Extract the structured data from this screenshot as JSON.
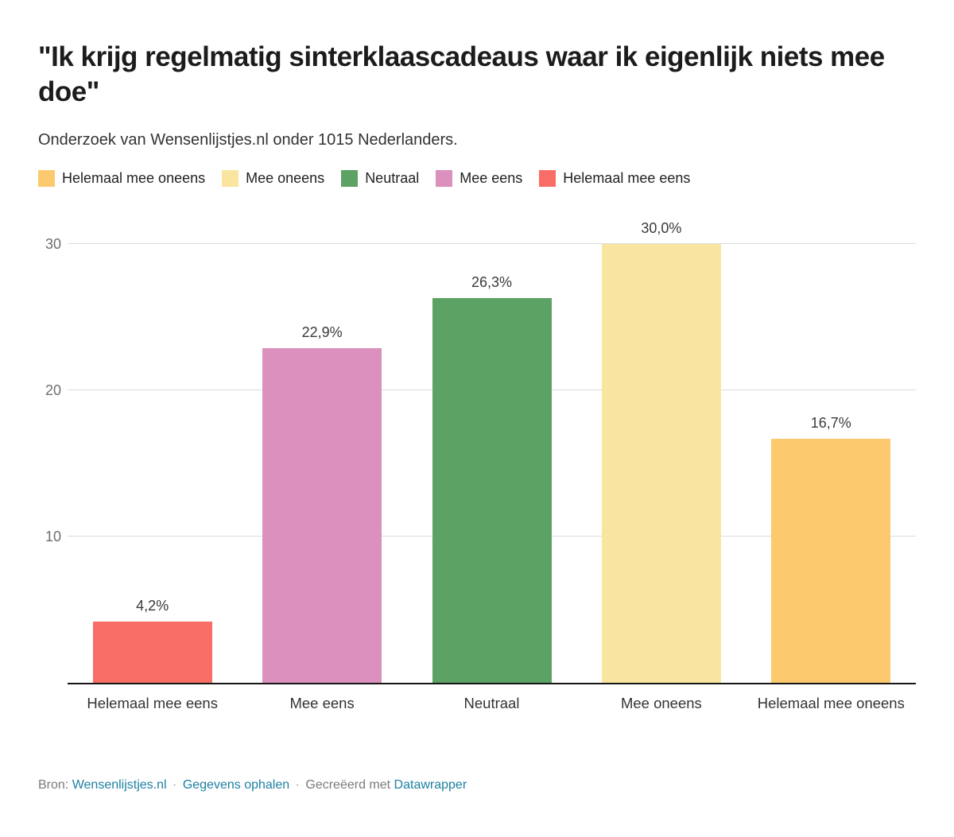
{
  "header": {
    "title": "\"Ik krijg regelmatig sinterklaascadeaus waar ik eigenlijk niets mee doe\"",
    "subtitle": "Onderzoek van Wensenlijstjes.nl onder 1015 Nederlanders."
  },
  "legend": {
    "items": [
      {
        "label": "Helemaal mee oneens",
        "color": "#FDC96E"
      },
      {
        "label": "Mee oneens",
        "color": "#F9E5A0"
      },
      {
        "label": "Neutraal",
        "color": "#5BA264"
      },
      {
        "label": "Mee eens",
        "color": "#DC90BE"
      },
      {
        "label": "Helemaal mee eens",
        "color": "#F86E66"
      }
    ]
  },
  "chart_data": {
    "type": "bar",
    "title": "\"Ik krijg regelmatig sinterklaascadeaus waar ik eigenlijk niets mee doe\"",
    "subtitle": "Onderzoek van Wensenlijstjes.nl onder 1015 Nederlanders.",
    "categories": [
      "Helemaal mee eens",
      "Mee eens",
      "Neutraal",
      "Mee oneens",
      "Helemaal mee oneens"
    ],
    "values": [
      4.2,
      22.9,
      26.3,
      30.0,
      16.7
    ],
    "value_labels": [
      "4,2%",
      "22,9%",
      "26,3%",
      "30,0%",
      "16,7%"
    ],
    "bar_colors": [
      "#F86E66",
      "#DC90BE",
      "#5BA264",
      "#F9E5A0",
      "#FDC96E"
    ],
    "xlabel": "",
    "ylabel": "",
    "ylim": [
      0,
      30
    ],
    "yticks": [
      10,
      20,
      30
    ],
    "grid": true,
    "legend_position": "top",
    "legend_entries": [
      "Helemaal mee oneens",
      "Mee oneens",
      "Neutraal",
      "Mee eens",
      "Helemaal mee eens"
    ]
  },
  "footer": {
    "bron_label": "Bron:",
    "source_link": "Wensenlijstjes.nl",
    "sep1": "·",
    "get_data_link": "Gegevens ophalen",
    "sep2": "·",
    "created_with": "Gecreëerd met",
    "tool_link": "Datawrapper"
  },
  "colors": {
    "link": "#1d81a2",
    "gridline": "#dcdcdc",
    "axis_line": "#161616",
    "tick_text": "#6e6e6e"
  }
}
